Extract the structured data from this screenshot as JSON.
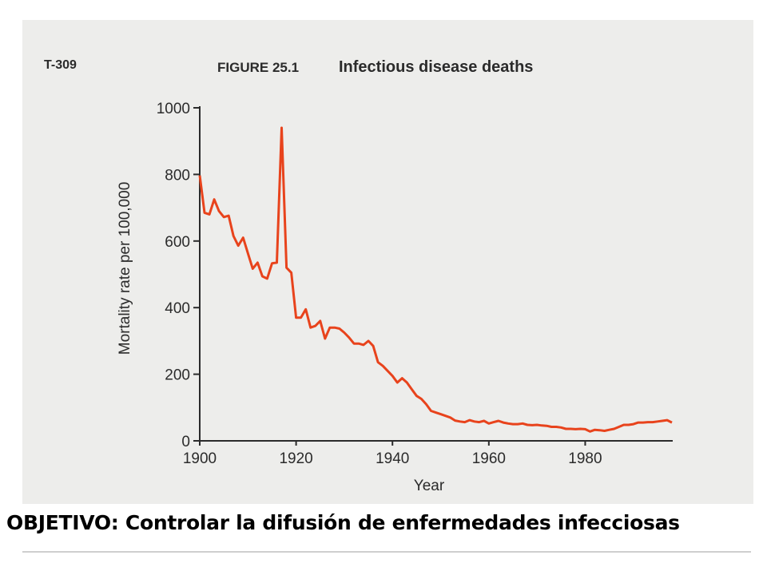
{
  "header": {
    "code": "T-309",
    "figure_number": "FIGURE 25.1",
    "figure_title": "Infectious disease deaths"
  },
  "caption": "OBJETIVO: Controlar la difusión de enfermedades infecciosas",
  "colors": {
    "line": "#e8431c",
    "axis": "#2b2b2b",
    "scan_background": "#ededeb"
  },
  "chart_data": {
    "type": "line",
    "title": "Infectious disease deaths",
    "xlabel": "Year",
    "ylabel": "Mortality rate per 100,000",
    "xlim": [
      1900,
      1998
    ],
    "ylim": [
      0,
      1000
    ],
    "xticks": [
      1900,
      1920,
      1940,
      1960,
      1980
    ],
    "yticks": [
      0,
      200,
      400,
      600,
      800,
      1000
    ],
    "grid": false,
    "x": [
      1900,
      1901,
      1902,
      1903,
      1904,
      1905,
      1906,
      1907,
      1908,
      1909,
      1910,
      1911,
      1912,
      1913,
      1914,
      1915,
      1916,
      1917,
      1918,
      1919,
      1920,
      1921,
      1922,
      1923,
      1924,
      1925,
      1926,
      1927,
      1928,
      1929,
      1930,
      1931,
      1932,
      1933,
      1934,
      1935,
      1936,
      1937,
      1938,
      1939,
      1940,
      1941,
      1942,
      1943,
      1944,
      1945,
      1946,
      1947,
      1948,
      1949,
      1950,
      1951,
      1952,
      1953,
      1954,
      1955,
      1956,
      1957,
      1958,
      1959,
      1960,
      1961,
      1962,
      1963,
      1964,
      1965,
      1966,
      1967,
      1968,
      1969,
      1970,
      1971,
      1972,
      1973,
      1974,
      1975,
      1976,
      1977,
      1978,
      1979,
      1980,
      1981,
      1982,
      1983,
      1984,
      1985,
      1986,
      1987,
      1988,
      1989,
      1990,
      1991,
      1992,
      1993,
      1994,
      1995,
      1996,
      1997,
      1998
    ],
    "y": [
      797,
      685,
      680,
      725,
      690,
      672,
      676,
      615,
      586,
      610,
      563,
      517,
      535,
      494,
      487,
      533,
      535,
      940,
      520,
      505,
      370,
      370,
      395,
      340,
      345,
      360,
      307,
      340,
      340,
      337,
      325,
      310,
      292,
      292,
      288,
      300,
      285,
      236,
      225,
      210,
      195,
      175,
      188,
      175,
      155,
      135,
      126,
      110,
      90,
      85,
      80,
      75,
      70,
      61,
      58,
      56,
      62,
      58,
      56,
      60,
      52,
      56,
      60,
      55,
      52,
      50,
      50,
      52,
      48,
      47,
      48,
      46,
      45,
      42,
      42,
      40,
      36,
      36,
      35,
      36,
      35,
      28,
      33,
      32,
      30,
      33,
      36,
      42,
      48,
      48,
      50,
      55,
      55,
      56,
      56,
      58,
      60,
      62,
      55
    ]
  }
}
